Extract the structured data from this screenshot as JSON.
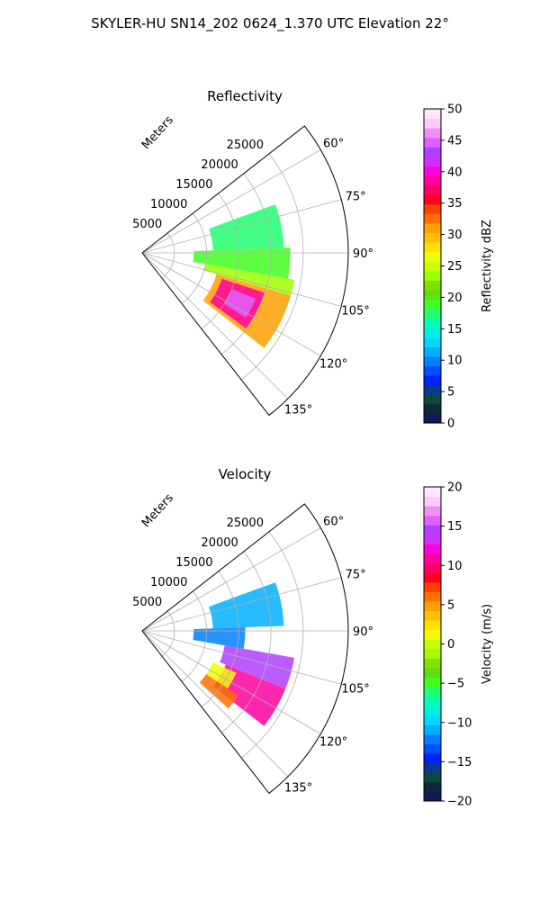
{
  "figure_title": "SKYLER-HU  SN14_202  0624_1.370 UTC Elevation 22°",
  "chart_data": [
    {
      "type": "heatmap",
      "title": "Reflectivity",
      "radial_label": "Meters",
      "range_ticks": [
        5000,
        10000,
        15000,
        20000,
        25000
      ],
      "range_tick_labels": [
        "5000",
        "10000",
        "15000",
        "20000",
        "25000"
      ],
      "range_max": 32000,
      "azimuth_ticks": [
        60,
        75,
        90,
        105,
        120,
        135
      ],
      "azimuth_tick_labels": [
        "60°",
        "75°",
        "90°",
        "105°",
        "120°",
        "135°"
      ],
      "azimuth_range": [
        52,
        142
      ],
      "colorbar": {
        "label": "Reflectivity dBZ",
        "min": 0,
        "max": 50,
        "ticks": [
          0,
          5,
          10,
          15,
          20,
          25,
          30,
          35,
          40,
          45,
          50
        ],
        "tick_labels": [
          "0",
          "5",
          "10",
          "15",
          "20",
          "25",
          "30",
          "35",
          "40",
          "45",
          "50"
        ],
        "colors": [
          "#101a5a",
          "#0a2a3a",
          "#0b4a3a",
          "#0a3a8a",
          "#0020ff",
          "#0050ff",
          "#0080ff",
          "#00b0ff",
          "#00d8ff",
          "#00f0e0",
          "#00ffb0",
          "#20ff70",
          "#40ff20",
          "#60e010",
          "#80e000",
          "#a0ff00",
          "#c8ff00",
          "#f0ff00",
          "#ffe000",
          "#ffc000",
          "#ffa000",
          "#ff7000",
          "#ff4000",
          "#ff0020",
          "#ff0060",
          "#ff00a0",
          "#ff00e0",
          "#d030ff",
          "#b040ff",
          "#e060ff",
          "#f090f0",
          "#ffc8ff",
          "#ffe8ff"
        ]
      },
      "echo_regions": [
        {
          "az": [
            70,
            88
          ],
          "r": [
            11000,
            22000
          ],
          "value": 17
        },
        {
          "az": [
            88,
            100
          ],
          "r": [
            8000,
            23000
          ],
          "value": 19
        },
        {
          "az": [
            100,
            106
          ],
          "r": [
            10000,
            24000
          ],
          "value": 24
        },
        {
          "az": [
            106,
            128
          ],
          "r": [
            12000,
            24000
          ],
          "value": 31
        },
        {
          "az": [
            108,
            126
          ],
          "r": [
            13000,
            20000
          ],
          "value": 39
        },
        {
          "az": [
            112,
            122
          ],
          "r": [
            15000,
            19000
          ],
          "value": 45
        }
      ]
    },
    {
      "type": "heatmap",
      "title": "Velocity",
      "radial_label": "Meters",
      "range_ticks": [
        5000,
        10000,
        15000,
        20000,
        25000
      ],
      "range_tick_labels": [
        "5000",
        "10000",
        "15000",
        "20000",
        "25000"
      ],
      "range_max": 32000,
      "azimuth_ticks": [
        60,
        75,
        90,
        105,
        120,
        135
      ],
      "azimuth_tick_labels": [
        "60°",
        "75°",
        "90°",
        "105°",
        "120°",
        "135°"
      ],
      "azimuth_range": [
        52,
        142
      ],
      "colorbar": {
        "label": "Velocity (m/s)",
        "min": -20,
        "max": 20,
        "ticks": [
          -20,
          -15,
          -10,
          -5,
          0,
          5,
          10,
          15,
          20
        ],
        "tick_labels": [
          "−20",
          "−15",
          "−10",
          "−5",
          "0",
          "5",
          "10",
          "15",
          "20"
        ],
        "colors": [
          "#101a5a",
          "#0a2a3a",
          "#0b4a3a",
          "#0a3a8a",
          "#0020ff",
          "#0050ff",
          "#0080ff",
          "#00b0ff",
          "#00d8ff",
          "#00f0e0",
          "#00ffb0",
          "#20ff70",
          "#40ff20",
          "#60e010",
          "#80e000",
          "#a0ff00",
          "#c8ff00",
          "#f0ff00",
          "#ffe000",
          "#ffc000",
          "#ffa000",
          "#ff7000",
          "#ff4000",
          "#ff0020",
          "#ff0060",
          "#ff00a0",
          "#ff00e0",
          "#d030ff",
          "#b040ff",
          "#e060ff",
          "#f090f0",
          "#ffc8ff",
          "#ffe8ff"
        ]
      },
      "echo_regions": [
        {
          "az": [
            70,
            88
          ],
          "r": [
            11000,
            22000
          ],
          "value": -11
        },
        {
          "az": [
            88,
            100
          ],
          "r": [
            8000,
            16000
          ],
          "value": -12
        },
        {
          "az": [
            100,
            112
          ],
          "r": [
            13000,
            24000
          ],
          "value": 14
        },
        {
          "az": [
            112,
            128
          ],
          "r": [
            14000,
            24000
          ],
          "value": 11
        },
        {
          "az": [
            114,
            124
          ],
          "r": [
            12000,
            16000
          ],
          "value": 1
        },
        {
          "az": [
            124,
            132
          ],
          "r": [
            12000,
            18000
          ],
          "value": 6
        }
      ]
    }
  ]
}
